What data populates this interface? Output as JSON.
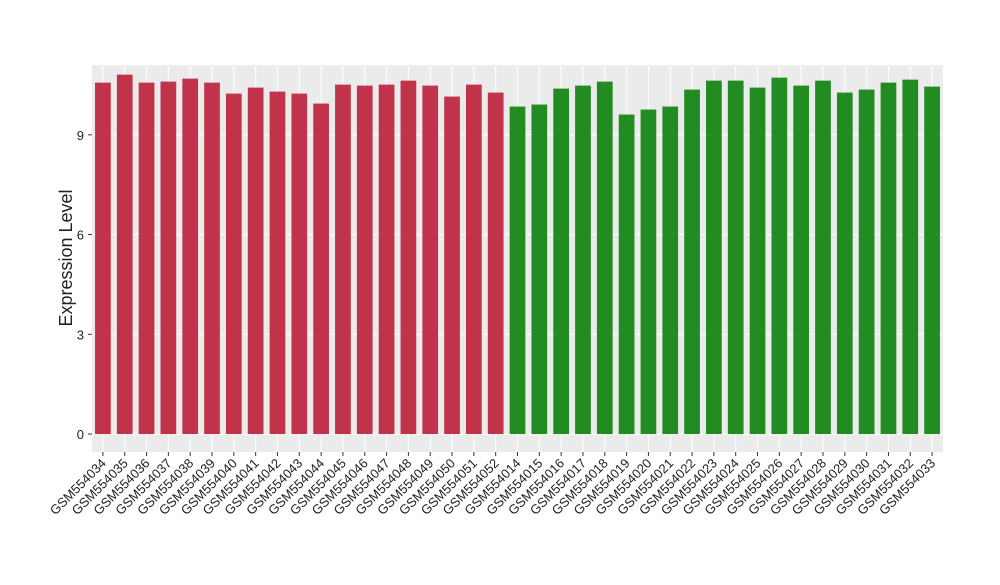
{
  "chart_data": {
    "type": "bar",
    "y_label": "Expression Level",
    "categories": [
      "GSM554034",
      "GSM554035",
      "GSM554036",
      "GSM554037",
      "GSM554038",
      "GSM554039",
      "GSM554040",
      "GSM554041",
      "GSM554042",
      "GSM554043",
      "GSM554044",
      "GSM554045",
      "GSM554046",
      "GSM554047",
      "GSM554048",
      "GSM554049",
      "GSM554050",
      "GSM554051",
      "GSM554052",
      "GSM554014",
      "GSM554015",
      "GSM554016",
      "GSM554017",
      "GSM554018",
      "GSM554019",
      "GSM554020",
      "GSM554021",
      "GSM554022",
      "GSM554023",
      "GSM554024",
      "GSM554025",
      "GSM554026",
      "GSM554027",
      "GSM554028",
      "GSM554029",
      "GSM554030",
      "GSM554031",
      "GSM554032",
      "GSM554033"
    ],
    "values": [
      10.57,
      10.81,
      10.57,
      10.6,
      10.69,
      10.57,
      10.24,
      10.42,
      10.3,
      10.24,
      9.94,
      10.51,
      10.48,
      10.51,
      10.63,
      10.48,
      10.15,
      10.51,
      10.27,
      9.85,
      9.91,
      10.39,
      10.48,
      10.6,
      9.61,
      9.76,
      9.85,
      10.36,
      10.63,
      10.63,
      10.42,
      10.72,
      10.48,
      10.63,
      10.27,
      10.36,
      10.57,
      10.66,
      10.45
    ],
    "colors": [
      "#c0334a",
      "#c0334a",
      "#c0334a",
      "#c0334a",
      "#c0334a",
      "#c0334a",
      "#c0334a",
      "#c0334a",
      "#c0334a",
      "#c0334a",
      "#c0334a",
      "#c0334a",
      "#c0334a",
      "#c0334a",
      "#c0334a",
      "#c0334a",
      "#c0334a",
      "#c0334a",
      "#c0334a",
      "#228b22",
      "#228b22",
      "#228b22",
      "#228b22",
      "#228b22",
      "#228b22",
      "#228b22",
      "#228b22",
      "#228b22",
      "#228b22",
      "#228b22",
      "#228b22",
      "#228b22",
      "#228b22",
      "#228b22",
      "#228b22",
      "#228b22",
      "#228b22",
      "#228b22",
      "#228b22"
    ],
    "ylim": [
      -0.54,
      11.1
    ],
    "yticks": [
      0,
      3,
      6,
      9
    ],
    "grid": true
  }
}
